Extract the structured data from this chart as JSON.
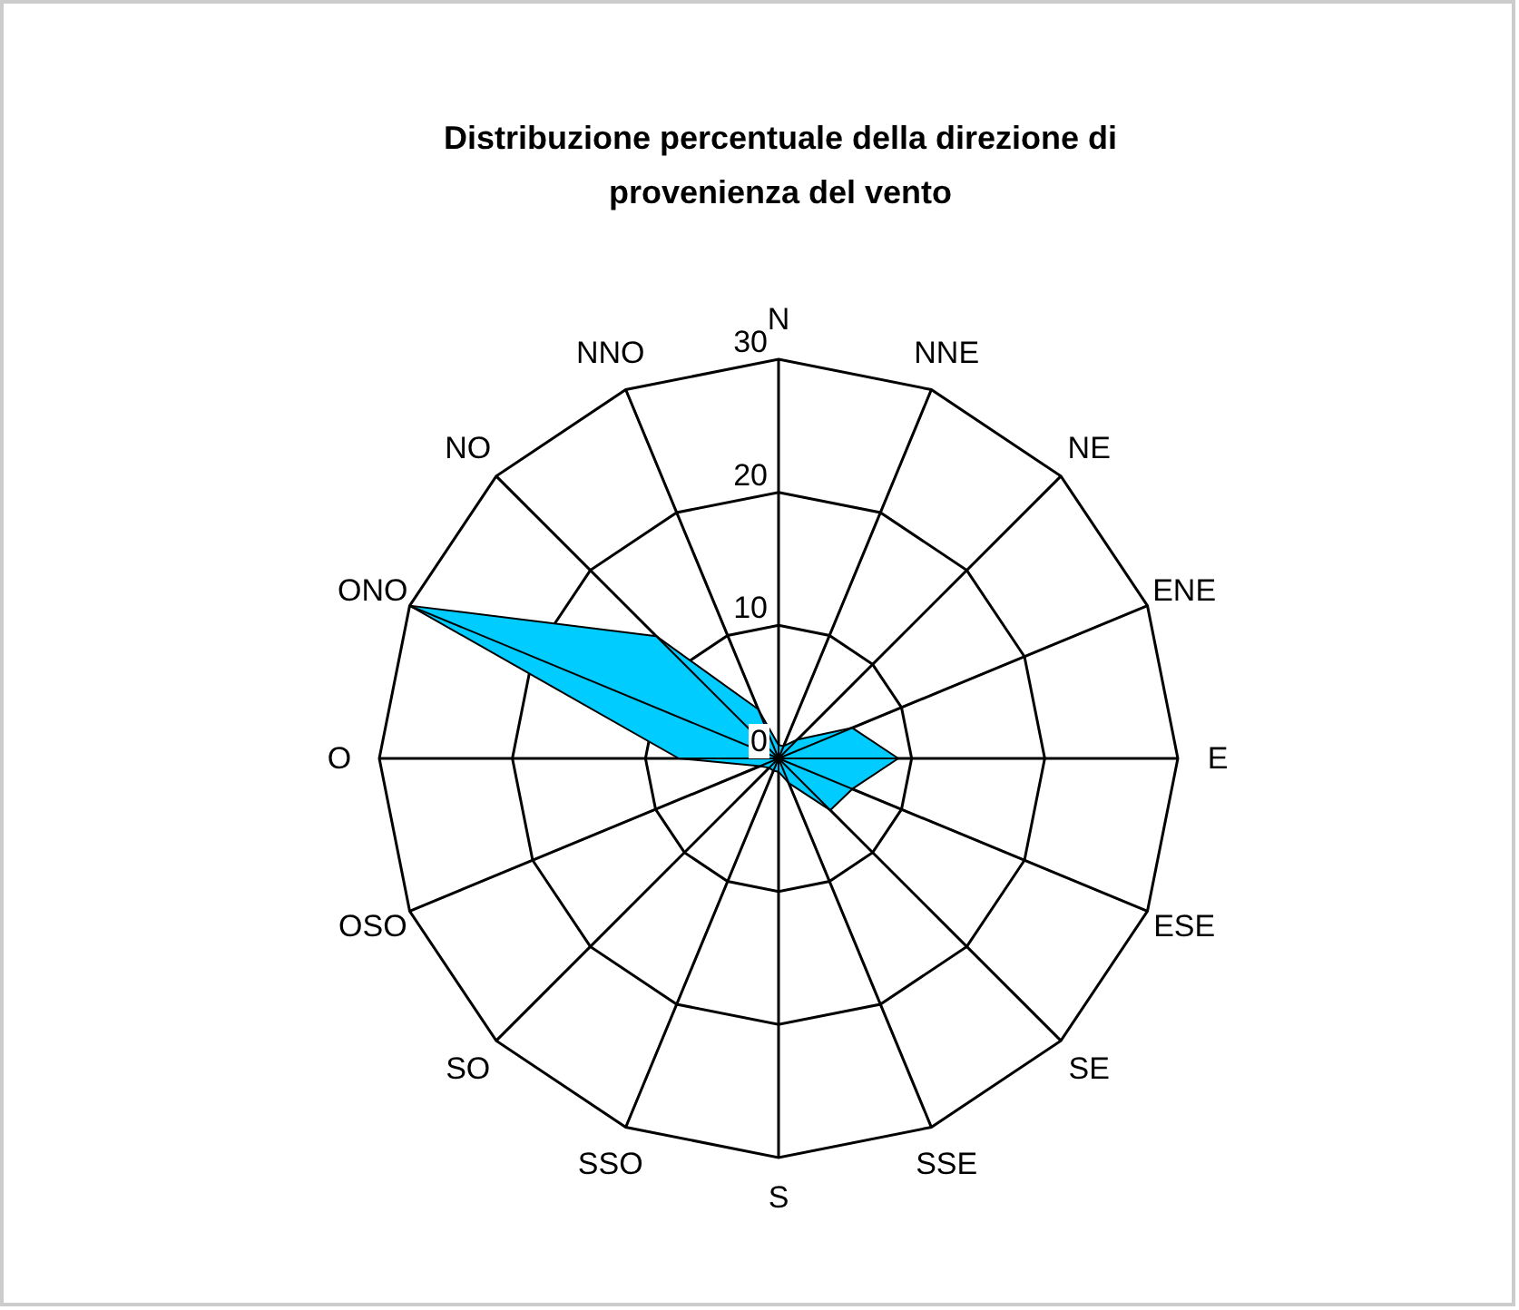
{
  "chart_data": {
    "type": "radar",
    "title": "Distribuzione percentuale della direzione di provenienza del vento",
    "categories": [
      "N",
      "NNE",
      "NE",
      "ENE",
      "E",
      "ESE",
      "SE",
      "SSE",
      "S",
      "SSO",
      "SO",
      "OSO",
      "O",
      "ONO",
      "NO",
      "NNO"
    ],
    "series": [
      {
        "color": "#00ccff",
        "values": [
          1,
          1,
          2,
          6,
          9,
          6,
          5.5,
          2,
          1,
          1,
          1,
          1.5,
          7.5,
          30,
          13,
          4
        ]
      }
    ],
    "ylim": [
      0,
      30
    ],
    "yticks": [
      0,
      10,
      20,
      30
    ],
    "grid": true
  }
}
